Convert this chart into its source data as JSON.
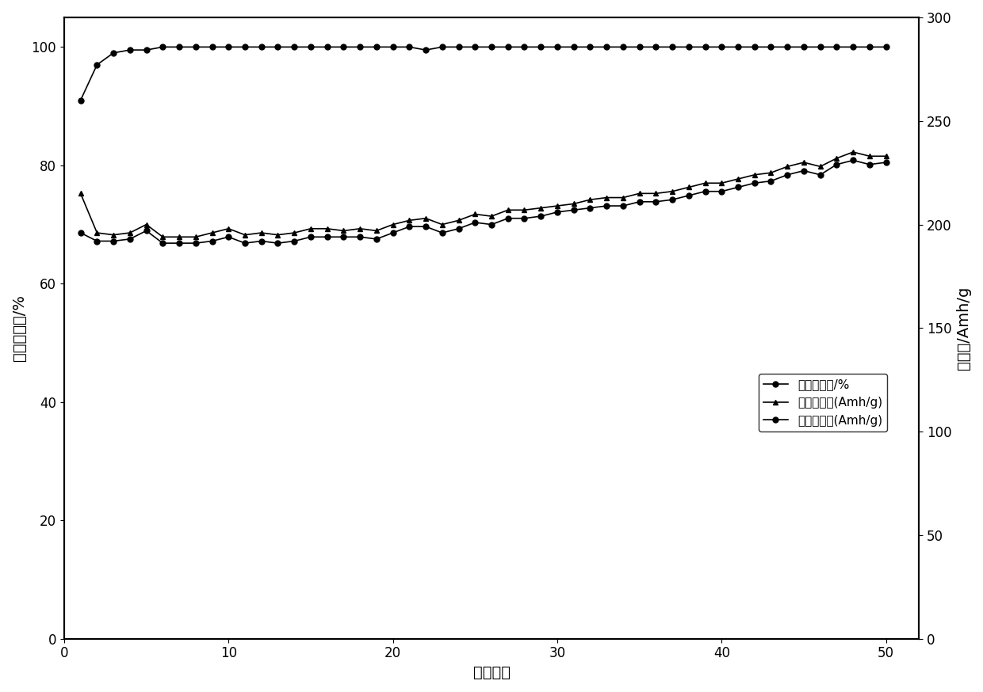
{
  "title": "",
  "xlabel": "循环次数",
  "ylabel_left": "充放电效率/%",
  "ylabel_right": "比容量/Amh/g",
  "xlim": [
    0,
    52
  ],
  "ylim_left": [
    0,
    105
  ],
  "ylim_right": [
    0,
    300
  ],
  "yticks_left": [
    0,
    20,
    40,
    60,
    80,
    100
  ],
  "yticks_right": [
    0,
    50,
    100,
    150,
    200,
    250,
    300
  ],
  "xticks": [
    0,
    10,
    20,
    30,
    40,
    50
  ],
  "efficiency_x": [
    1,
    2,
    3,
    4,
    5,
    6,
    7,
    8,
    9,
    10,
    11,
    12,
    13,
    14,
    15,
    16,
    17,
    18,
    19,
    20,
    21,
    22,
    23,
    24,
    25,
    26,
    27,
    28,
    29,
    30,
    31,
    32,
    33,
    34,
    35,
    36,
    37,
    38,
    39,
    40,
    41,
    42,
    43,
    44,
    45,
    46,
    47,
    48,
    49,
    50
  ],
  "efficiency_y": [
    91,
    97,
    99,
    99.5,
    99.5,
    100,
    100,
    100,
    100,
    100,
    100,
    100,
    100,
    100,
    100,
    100,
    100,
    100,
    100,
    100,
    100,
    99.5,
    100,
    100,
    100,
    100,
    100,
    100,
    100,
    100,
    100,
    100,
    100,
    100,
    100,
    100,
    100,
    100,
    100,
    100,
    100,
    100,
    100,
    100,
    100,
    100,
    100,
    100,
    100,
    100
  ],
  "charge_x": [
    1,
    2,
    3,
    4,
    5,
    6,
    7,
    8,
    9,
    10,
    11,
    12,
    13,
    14,
    15,
    16,
    17,
    18,
    19,
    20,
    21,
    22,
    23,
    24,
    25,
    26,
    27,
    28,
    29,
    30,
    31,
    32,
    33,
    34,
    35,
    36,
    37,
    38,
    39,
    40,
    41,
    42,
    43,
    44,
    45,
    46,
    47,
    48,
    49,
    50
  ],
  "charge_y": [
    215,
    196,
    195,
    196,
    200,
    194,
    194,
    194,
    196,
    198,
    195,
    196,
    195,
    196,
    198,
    198,
    197,
    198,
    197,
    200,
    202,
    203,
    200,
    202,
    205,
    204,
    207,
    207,
    208,
    209,
    210,
    212,
    213,
    213,
    215,
    215,
    216,
    218,
    220,
    220,
    222,
    224,
    225,
    228,
    230,
    228,
    232,
    235,
    233,
    233
  ],
  "discharge_x": [
    1,
    2,
    3,
    4,
    5,
    6,
    7,
    8,
    9,
    10,
    11,
    12,
    13,
    14,
    15,
    16,
    17,
    18,
    19,
    20,
    21,
    22,
    23,
    24,
    25,
    26,
    27,
    28,
    29,
    30,
    31,
    32,
    33,
    34,
    35,
    36,
    37,
    38,
    39,
    40,
    41,
    42,
    43,
    44,
    45,
    46,
    47,
    48,
    49,
    50
  ],
  "discharge_y": [
    196,
    192,
    192,
    193,
    197,
    191,
    191,
    191,
    192,
    194,
    191,
    192,
    191,
    192,
    194,
    194,
    194,
    194,
    193,
    196,
    199,
    199,
    196,
    198,
    201,
    200,
    203,
    203,
    204,
    206,
    207,
    208,
    209,
    209,
    211,
    211,
    212,
    214,
    216,
    216,
    218,
    220,
    221,
    224,
    226,
    224,
    229,
    231,
    229,
    230
  ],
  "legend_labels": [
    "充放电效率/%",
    "充电比容量(Amh/g)",
    "放电比容量(Amh/g)"
  ],
  "line_color": "#000000",
  "marker_efficiency": "o",
  "marker_charge": "^",
  "marker_discharge": "o",
  "marker_size": 5,
  "line_width": 1.2,
  "font_size_label": 14,
  "font_size_tick": 12,
  "font_size_legend": 11,
  "background_color": "#ffffff"
}
